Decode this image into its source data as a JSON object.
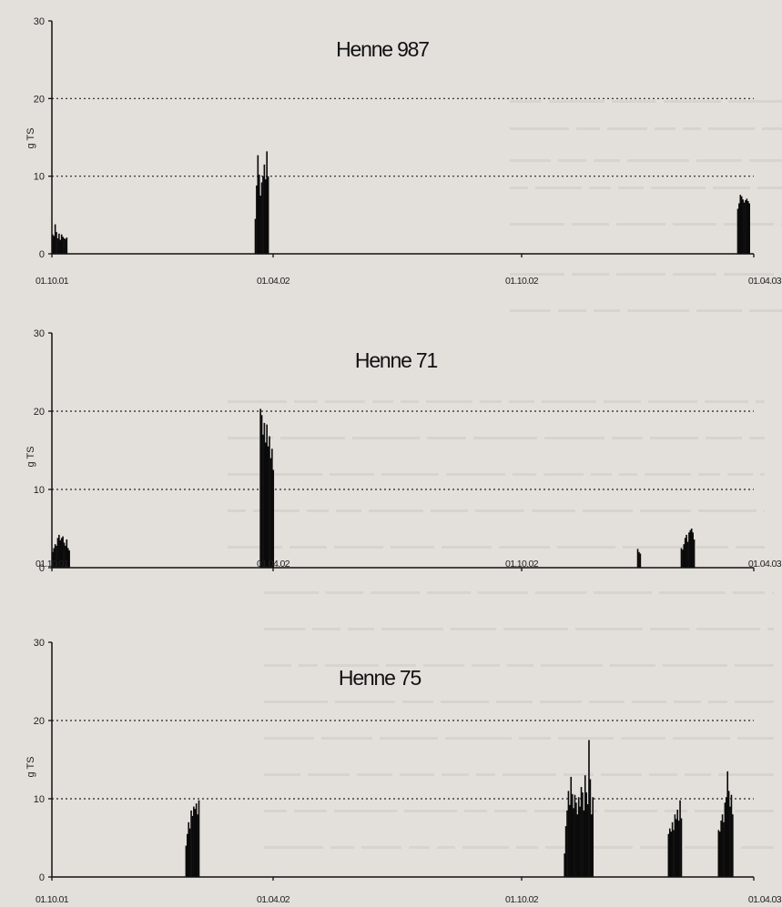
{
  "chart_data": [
    {
      "type": "bar",
      "title": "Henne 987",
      "ylabel": "g TS",
      "ylim": [
        0,
        30
      ],
      "yticks": [
        0,
        10,
        20,
        30
      ],
      "gridlines": [
        10,
        20
      ],
      "xlim": [
        "01.10.01",
        "01.04.03"
      ],
      "xtick_labels": [
        "01.10.01",
        "01.04.02",
        "01.10.02",
        "01.04.03"
      ],
      "clusters": [
        {
          "start_day": 0,
          "values": [
            2.5,
            2.3,
            3.8,
            2.8,
            2.0,
            2.6,
            1.8,
            2.5,
            2.2,
            2.0,
            1.9,
            2.1
          ]
        },
        {
          "start_day": 158,
          "values": [
            4.5,
            8.8,
            12.7,
            10.2,
            7.5,
            9.2,
            10.0,
            11.5,
            9.6,
            13.2,
            10.0
          ]
        },
        {
          "start_day": 534,
          "values": [
            5.8,
            6.5,
            7.6,
            7.4,
            7.0,
            6.6,
            6.9,
            7.1,
            6.8,
            6.5
          ]
        }
      ]
    },
    {
      "type": "bar",
      "title": "Henne 71",
      "ylabel": "g TS",
      "ylim": [
        0,
        30
      ],
      "yticks": [
        0,
        10,
        20,
        30
      ],
      "gridlines": [
        10,
        20
      ],
      "xlim": [
        "01.10.01",
        "01.04.03"
      ],
      "xtick_labels": [
        "01.10.01",
        "01.04.02",
        "01.10.02",
        "01.04.03"
      ],
      "clusters": [
        {
          "start_day": 0,
          "values": [
            2.0,
            2.5,
            3.0,
            2.8,
            3.8,
            4.2,
            3.5,
            3.8,
            4.0,
            3.2,
            2.8,
            3.6,
            2.5,
            2.2
          ]
        },
        {
          "start_day": 162,
          "values": [
            20.3,
            19.5,
            17.0,
            18.5,
            16.0,
            18.3,
            15.5,
            16.8,
            14.0,
            15.2,
            12.5
          ]
        },
        {
          "start_day": 456,
          "values": [
            2.4,
            2.0,
            1.8
          ]
        },
        {
          "start_day": 490,
          "values": [
            2.5,
            2.3,
            3.0,
            3.8,
            4.2,
            3.3,
            4.5,
            4.8,
            5.0,
            4.5,
            3.6
          ]
        }
      ]
    },
    {
      "type": "bar",
      "title": "Henne 75",
      "ylabel": "g TS",
      "ylim": [
        0,
        30
      ],
      "yticks": [
        0,
        10,
        20,
        30
      ],
      "gridlines": [
        10,
        20
      ],
      "xlim": [
        "01.10.01",
        "01.04.03"
      ],
      "xtick_labels": [
        "01.10.01",
        "01.04.02",
        "01.10.02",
        "01.04.03"
      ],
      "clusters": [
        {
          "start_day": 104,
          "values": [
            4.0,
            5.5,
            7.0,
            6.2,
            8.5,
            7.8,
            9.0,
            8.7,
            9.4,
            8.0,
            9.8
          ]
        },
        {
          "start_day": 399,
          "values": [
            3.0,
            6.5,
            8.5,
            11.0,
            9.2,
            12.8,
            10.6,
            8.8,
            10.5,
            9.5,
            8.0,
            10.2,
            9.0,
            11.5,
            10.8,
            8.5,
            13.0,
            10.8,
            9.3,
            17.5,
            12.5,
            8.0,
            10.2
          ]
        },
        {
          "start_day": 480,
          "values": [
            5.5,
            6.2,
            5.8,
            7.0,
            6.0,
            8.0,
            7.4,
            8.6,
            7.2,
            9.8,
            7.5
          ]
        },
        {
          "start_day": 519,
          "values": [
            6.0,
            5.8,
            7.2,
            8.0,
            7.0,
            9.5,
            10.2,
            13.5,
            11.0,
            9.0,
            10.5,
            8.0
          ]
        }
      ]
    }
  ]
}
